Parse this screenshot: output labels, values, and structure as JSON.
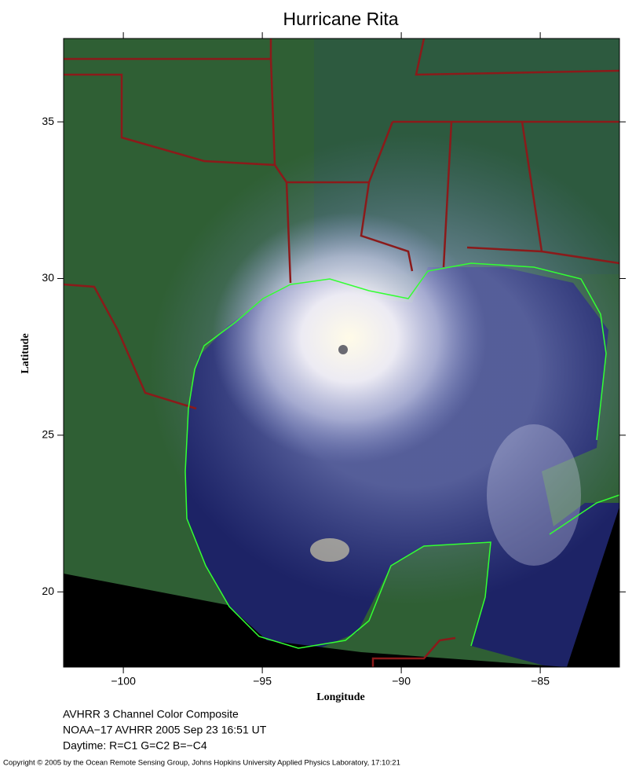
{
  "map": {
    "title": "Hurricane Rita",
    "x_label": "Longitude",
    "y_label": "Latitude",
    "xlim": [
      -102.15,
      -82.15
    ],
    "ylim": [
      17.6,
      37.66
    ],
    "xticks": [
      {
        "value": -100,
        "label": "−100"
      },
      {
        "value": -95,
        "label": "−95"
      },
      {
        "value": -90,
        "label": "−90"
      },
      {
        "value": -85,
        "label": "−85"
      }
    ],
    "yticks": [
      20,
      25,
      30,
      35
    ]
  },
  "caption": [
    "AVHRR 3 Channel Color Composite",
    "NOAA−17 AVHRR 2005 Sep 23 16:51 UT",
    "Daytime: R=C1 G=C2 B=−C4"
  ],
  "copyright": "Copyright © 2005 by the Ocean Remote Sensing Group, Johns Hopkins University Applied Physics Laboratory, 17:10:21"
}
